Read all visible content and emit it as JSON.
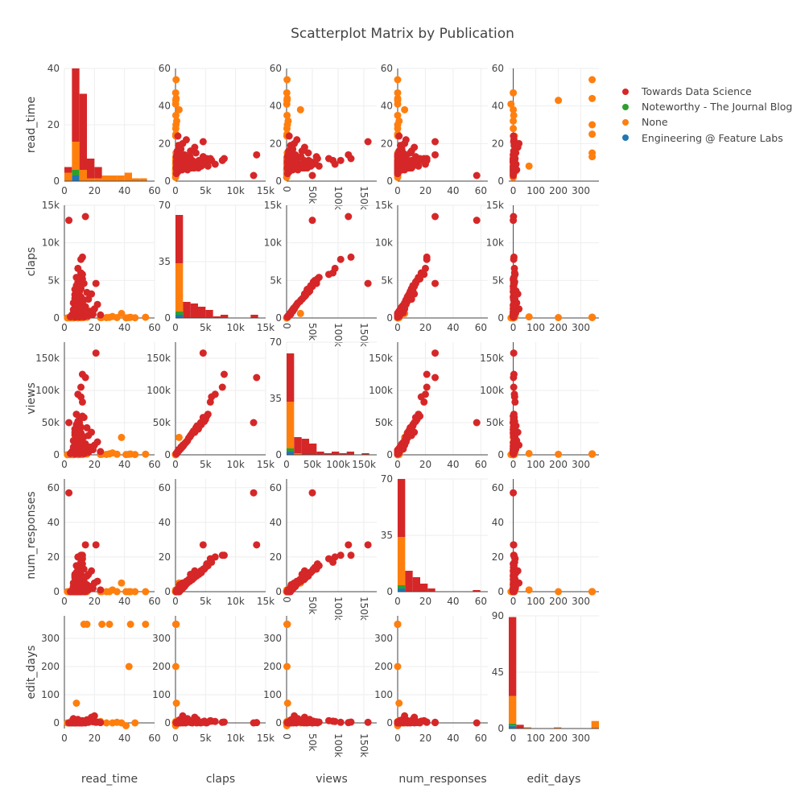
{
  "chart_title": "Scatterplot Matrix by Publication",
  "legend": [
    {
      "label": "Towards Data Science",
      "color": "#d62728"
    },
    {
      "label": "Noteworthy - The Journal Blog",
      "color": "#2ca02c"
    },
    {
      "label": "None",
      "color": "#ff7f0e"
    },
    {
      "label": "Engineering @ Feature Labs",
      "color": "#1f77b4"
    }
  ],
  "chart_data": {
    "type": "scatter",
    "title": "Scatterplot Matrix by Publication",
    "subtype": "scatterplot-matrix",
    "diagonal": "stacked histogram",
    "variables": [
      "read_time",
      "claps",
      "views",
      "num_responses",
      "edit_days"
    ],
    "axes": {
      "read_time": {
        "range": [
          0,
          60
        ],
        "ticks": [
          0,
          20,
          40,
          60
        ],
        "tick_labels": [
          "0",
          "20",
          "40",
          "60"
        ]
      },
      "claps": {
        "range": [
          0,
          15000
        ],
        "ticks": [
          0,
          5000,
          10000,
          15000
        ],
        "tick_labels": [
          "0",
          "5k",
          "10k",
          "15k"
        ]
      },
      "views": {
        "range": [
          0,
          175000
        ],
        "ticks": [
          0,
          50000,
          100000,
          150000
        ],
        "tick_labels": [
          "0",
          "50k",
          "100k",
          "150k"
        ]
      },
      "num_responses": {
        "range": [
          0,
          65
        ],
        "ticks": [
          0,
          20,
          40,
          60
        ],
        "tick_labels": [
          "0",
          "20",
          "40",
          "60"
        ]
      },
      "edit_days": {
        "range": [
          -20,
          380
        ],
        "ticks": [
          0,
          100,
          200,
          300
        ],
        "tick_labels": [
          "0",
          "100",
          "200",
          "300"
        ]
      }
    },
    "series": [
      {
        "name": "Towards Data Science",
        "color": "#d62728",
        "points": [
          [
            3,
            13000,
            50000,
            57,
            0
          ],
          [
            14,
            13500,
            120000,
            27,
            1
          ],
          [
            21,
            4600,
            158000,
            27,
            2
          ],
          [
            12,
            8100,
            125000,
            21,
            3
          ],
          [
            11,
            7800,
            105000,
            21,
            2
          ],
          [
            9,
            6600,
            94000,
            20,
            5
          ],
          [
            11,
            6000,
            90000,
            17,
            6
          ],
          [
            12,
            5800,
            82000,
            19,
            8
          ],
          [
            8,
            5400,
            63000,
            15,
            3
          ],
          [
            10,
            5000,
            55000,
            14,
            1
          ],
          [
            13,
            4600,
            58000,
            13,
            4
          ],
          [
            10,
            4200,
            50000,
            12,
            0
          ],
          [
            7,
            3800,
            40000,
            10,
            2
          ],
          [
            9,
            3600,
            45000,
            11,
            12
          ],
          [
            15,
            3400,
            42000,
            9,
            3
          ],
          [
            8,
            3000,
            37000,
            8,
            5
          ],
          [
            11,
            2800,
            34000,
            7,
            0
          ],
          [
            7,
            2600,
            31000,
            9,
            1
          ],
          [
            13,
            2400,
            28000,
            6,
            2
          ],
          [
            9,
            2200,
            26000,
            7,
            8
          ],
          [
            6,
            2000,
            22000,
            5,
            15
          ],
          [
            12,
            1900,
            21000,
            6,
            3
          ],
          [
            8,
            1700,
            19000,
            4,
            0
          ],
          [
            10,
            1600,
            18000,
            5,
            2
          ],
          [
            14,
            1500,
            17000,
            3,
            4
          ],
          [
            7,
            1400,
            16000,
            4,
            1
          ],
          [
            9,
            1300,
            14000,
            3,
            6
          ],
          [
            11,
            1200,
            13000,
            2,
            0
          ],
          [
            6,
            1100,
            12000,
            3,
            2
          ],
          [
            8,
            1000,
            11000,
            2,
            9
          ],
          [
            12,
            900,
            10000,
            1,
            1
          ],
          [
            10,
            850,
            9500,
            2,
            3
          ],
          [
            7,
            800,
            9000,
            1,
            0
          ],
          [
            13,
            700,
            8000,
            1,
            5
          ],
          [
            9,
            650,
            7500,
            0,
            2
          ],
          [
            6,
            600,
            7000,
            1,
            1
          ],
          [
            11,
            550,
            6500,
            0,
            0
          ],
          [
            8,
            500,
            6000,
            1,
            4
          ],
          [
            10,
            450,
            5500,
            0,
            2
          ],
          [
            5,
            400,
            5000,
            0,
            1
          ],
          [
            12,
            350,
            4500,
            1,
            0
          ],
          [
            7,
            300,
            4000,
            0,
            3
          ],
          [
            9,
            280,
            3500,
            0,
            1
          ],
          [
            14,
            250,
            3000,
            0,
            0
          ],
          [
            6,
            220,
            2800,
            1,
            2
          ],
          [
            11,
            200,
            2500,
            0,
            0
          ],
          [
            8,
            180,
            2200,
            0,
            1
          ],
          [
            4,
            160,
            2000,
            0,
            0
          ],
          [
            13,
            150,
            1800,
            0,
            2
          ],
          [
            10,
            140,
            1600,
            0,
            0
          ],
          [
            7,
            120,
            1400,
            0,
            1
          ],
          [
            16,
            2500,
            30000,
            10,
            7
          ],
          [
            18,
            3200,
            35000,
            12,
            20
          ],
          [
            20,
            1200,
            15000,
            5,
            25
          ],
          [
            17,
            900,
            12000,
            3,
            10
          ],
          [
            19,
            500,
            8000,
            2,
            4
          ],
          [
            15,
            700,
            9000,
            4,
            11
          ],
          [
            22,
            1800,
            20000,
            6,
            3
          ],
          [
            16,
            300,
            4000,
            1,
            2
          ],
          [
            24,
            400,
            5000,
            1,
            1
          ],
          [
            12,
            5200,
            60000,
            16,
            0
          ],
          [
            9,
            4800,
            52000,
            13,
            6
          ],
          [
            8,
            4300,
            47000,
            11,
            2
          ],
          [
            11,
            3900,
            43000,
            10,
            1
          ],
          [
            10,
            3500,
            39000,
            9,
            0
          ],
          [
            7,
            3100,
            35000,
            8,
            3
          ]
        ]
      },
      {
        "name": "None",
        "color": "#ff7f0e",
        "points": [
          [
            54,
            100,
            1000,
            0,
            350
          ],
          [
            44,
            100,
            1200,
            0,
            350
          ],
          [
            38,
            600,
            27000,
            5,
            0
          ],
          [
            43,
            50,
            800,
            0,
            200
          ],
          [
            30,
            80,
            1500,
            0,
            350
          ],
          [
            25,
            60,
            900,
            0,
            350
          ],
          [
            13,
            70,
            1100,
            0,
            350
          ],
          [
            15,
            90,
            1300,
            0,
            350
          ],
          [
            8,
            150,
            2000,
            1,
            70
          ],
          [
            28,
            50,
            700,
            0,
            0
          ],
          [
            24,
            40,
            600,
            0,
            5
          ],
          [
            47,
            30,
            500,
            0,
            0
          ],
          [
            41,
            20,
            400,
            0,
            -10
          ],
          [
            35,
            60,
            900,
            0,
            2
          ],
          [
            32,
            200,
            3000,
            1,
            0
          ],
          [
            5,
            30,
            400,
            0,
            0
          ],
          [
            7,
            50,
            600,
            0,
            1
          ],
          [
            3,
            40,
            500,
            0,
            0
          ],
          [
            9,
            20,
            300,
            0,
            2
          ],
          [
            6,
            10,
            200,
            0,
            0
          ],
          [
            11,
            30,
            400,
            1,
            3
          ],
          [
            4,
            20,
            300,
            0,
            1
          ],
          [
            2,
            10,
            150,
            0,
            0
          ],
          [
            8,
            60,
            800,
            0,
            0
          ],
          [
            10,
            80,
            1000,
            0,
            4
          ],
          [
            12,
            40,
            500,
            0,
            1
          ],
          [
            6,
            400,
            6000,
            2,
            0
          ],
          [
            5,
            300,
            4000,
            1,
            8
          ],
          [
            7,
            200,
            2500,
            0,
            2
          ],
          [
            9,
            100,
            1200,
            0,
            1
          ]
        ]
      },
      {
        "name": "Noteworthy - The Journal Blog",
        "color": "#2ca02c",
        "points": [
          [
            7,
            800,
            9000,
            3,
            1
          ],
          [
            6,
            400,
            5000,
            1,
            0
          ]
        ]
      },
      {
        "name": "Engineering @ Feature Labs",
        "color": "#1f77b4",
        "points": [
          [
            5,
            300,
            3000,
            0,
            0
          ],
          [
            6,
            200,
            2500,
            0,
            1
          ]
        ]
      }
    ]
  }
}
